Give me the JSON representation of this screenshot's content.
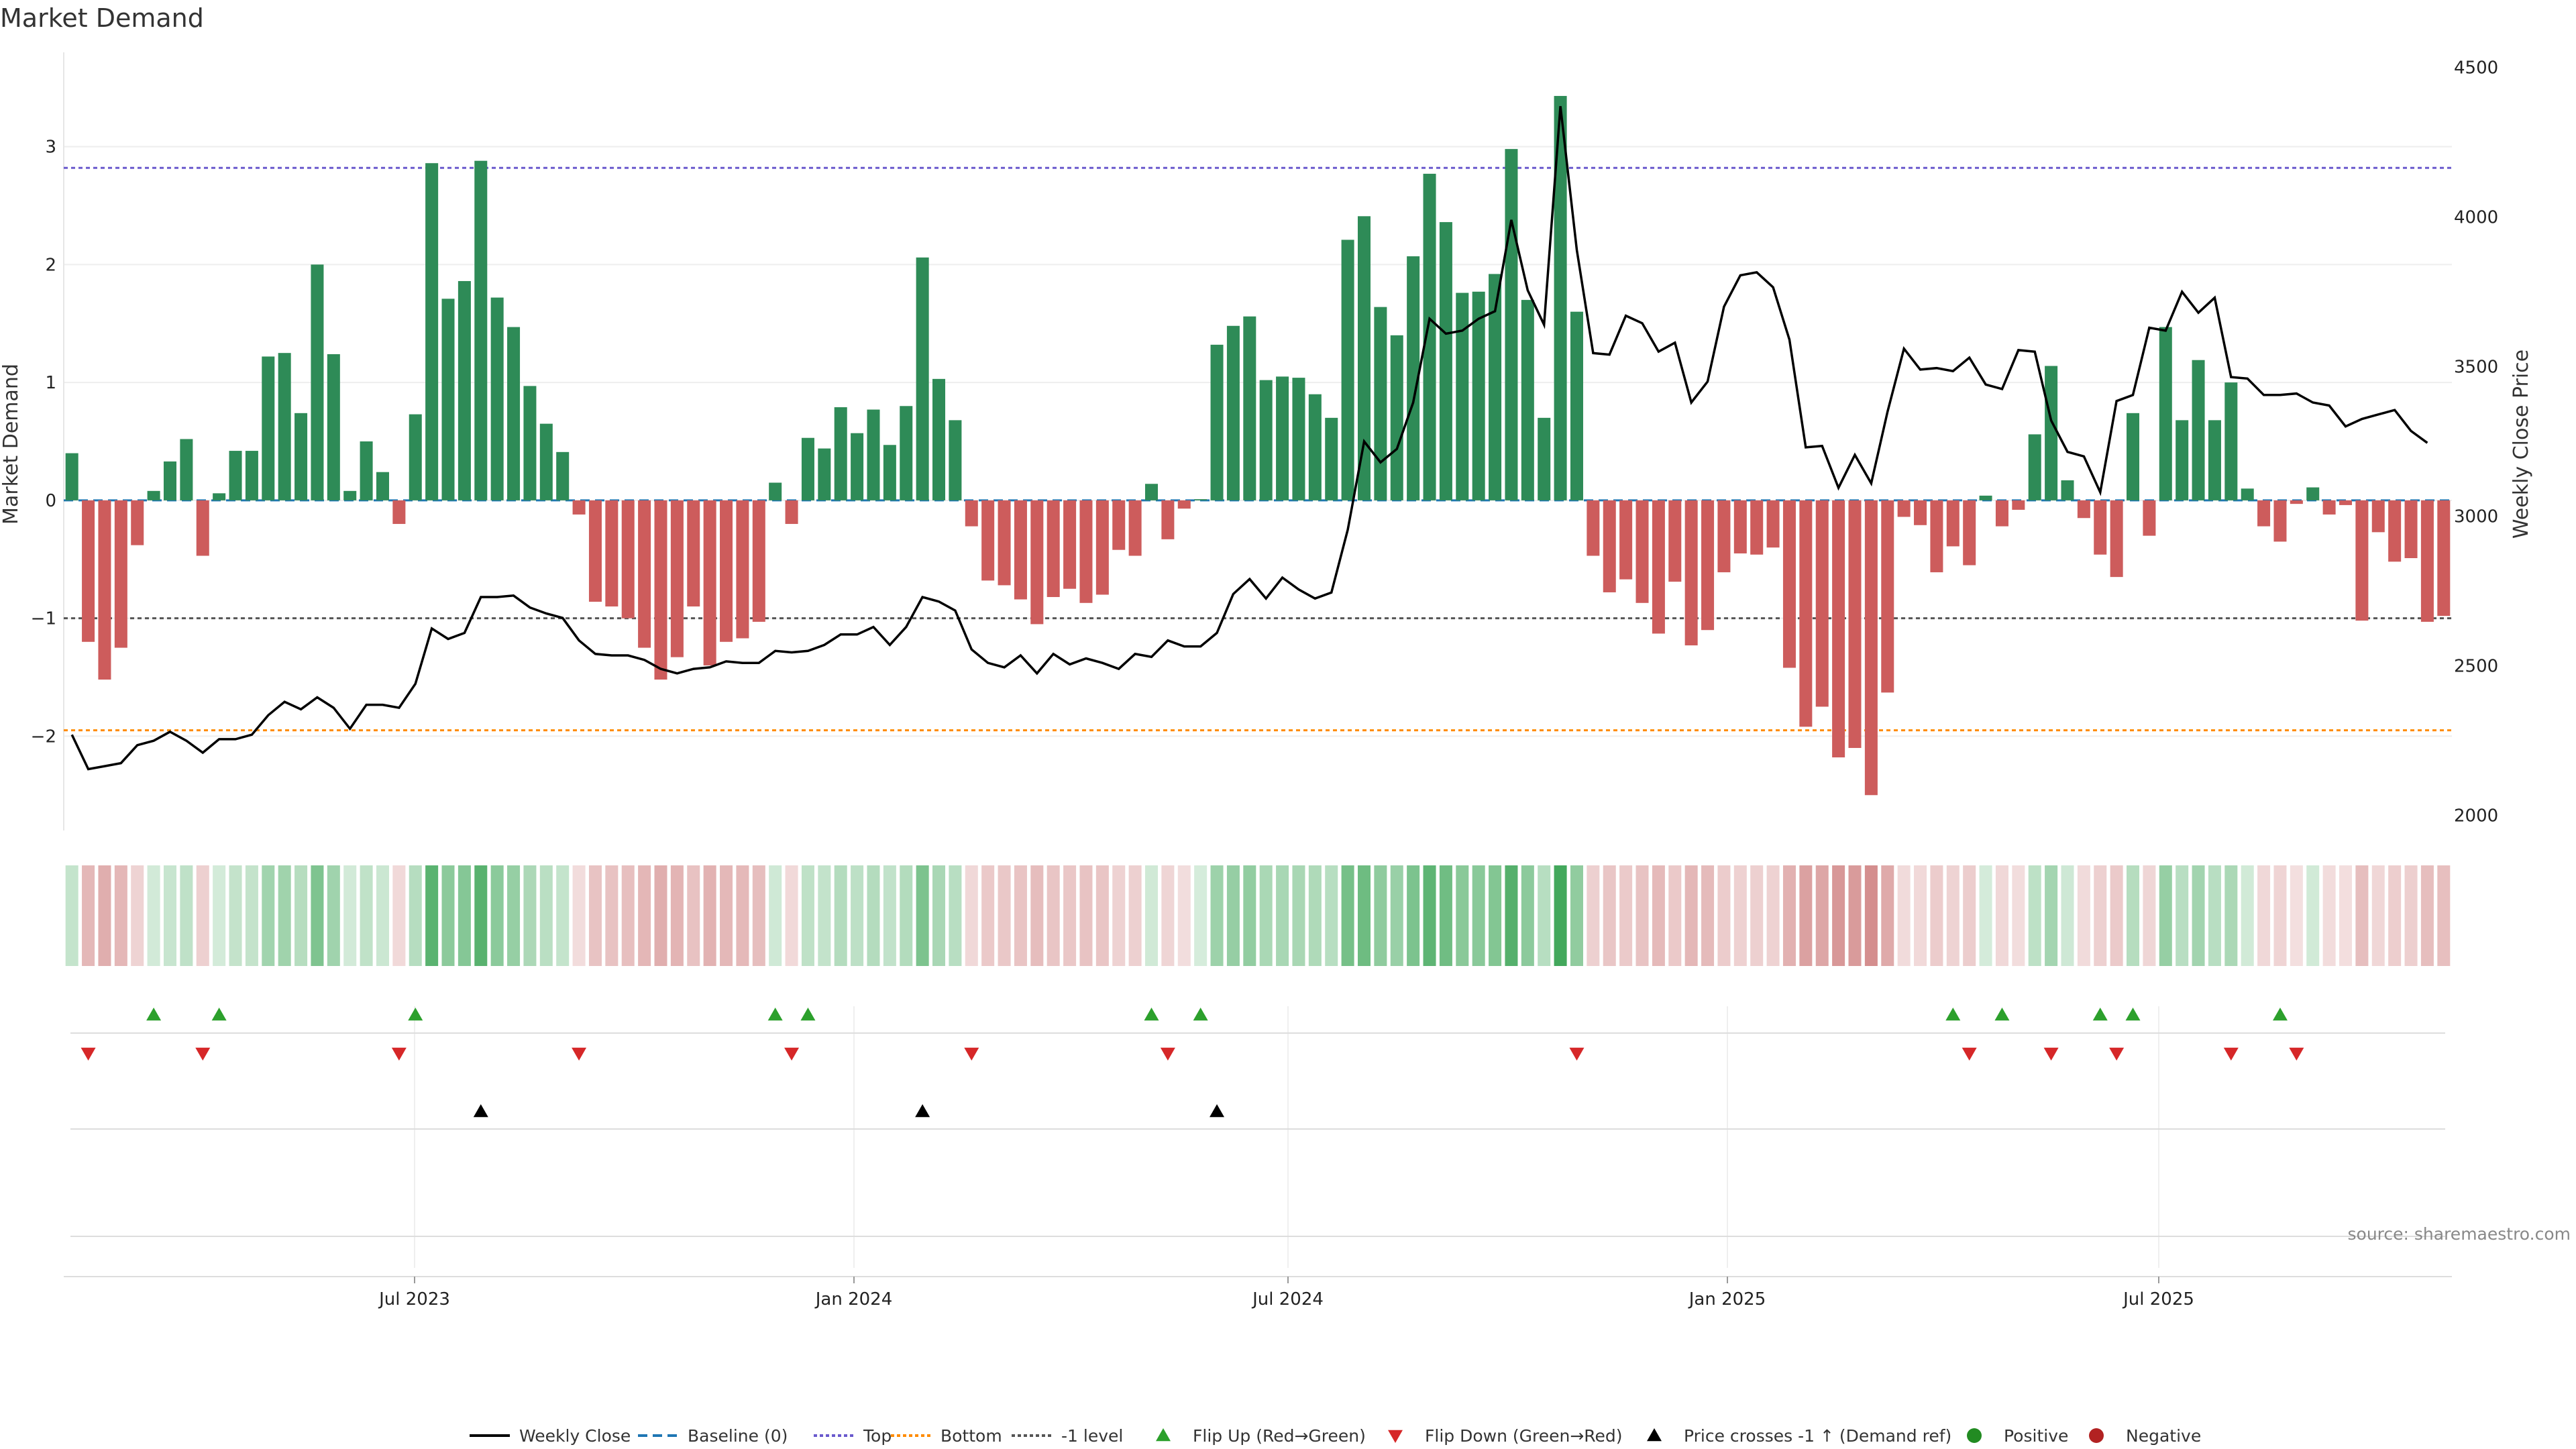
{
  "chart_data": {
    "type": "bar",
    "title": "Market Demand",
    "ylabel_left": "Market Demand",
    "ylabel_right": "Weekly Close Price",
    "ylim_left": [
      -2.8,
      3.8
    ],
    "ylim_right": [
      1950,
      4550
    ],
    "yticks_left": [
      3,
      2,
      1,
      0,
      -1,
      -2
    ],
    "yticks_left_labels": [
      "3",
      "2",
      "1",
      "0",
      "−1",
      "−2"
    ],
    "yticks_right": [
      4500,
      4000,
      3500,
      3000,
      2500,
      2000
    ],
    "xticks": [
      "Jul 2023",
      "Jan 2024",
      "Jul 2024",
      "Jan 2025",
      "Jul 2025"
    ],
    "reference_lines": {
      "top": 2.82,
      "bottom": -1.95,
      "minus_one": -1.0,
      "baseline": 0
    },
    "demand": [
      0.4,
      -1.2,
      -1.52,
      -1.25,
      -0.38,
      0.08,
      0.33,
      0.52,
      -0.47,
      0.06,
      0.42,
      0.42,
      1.22,
      1.25,
      0.74,
      2.0,
      1.24,
      0.08,
      0.5,
      0.24,
      -0.2,
      0.73,
      2.86,
      1.71,
      1.86,
      2.88,
      1.72,
      1.47,
      0.97,
      0.65,
      0.41,
      -0.12,
      -0.86,
      -0.9,
      -1.0,
      -1.25,
      -1.52,
      -1.33,
      -0.9,
      -1.4,
      -1.2,
      -1.17,
      -1.03,
      0.15,
      -0.2,
      0.53,
      0.44,
      0.79,
      0.57,
      0.77,
      0.47,
      0.8,
      2.06,
      1.03,
      0.68,
      -0.22,
      -0.68,
      -0.72,
      -0.84,
      -1.05,
      -0.82,
      -0.75,
      -0.87,
      -0.8,
      -0.42,
      -0.47,
      0.14,
      -0.33,
      -0.07,
      0.01,
      1.32,
      1.48,
      1.56,
      1.02,
      1.05,
      1.04,
      0.9,
      0.7,
      2.21,
      2.41,
      1.64,
      1.4,
      2.07,
      2.77,
      2.36,
      1.76,
      1.77,
      1.92,
      2.98,
      1.7,
      0.7,
      3.43,
      1.6,
      -0.47,
      -0.78,
      -0.67,
      -0.87,
      -1.13,
      -0.69,
      -1.23,
      -1.1,
      -0.61,
      -0.45,
      -0.46,
      -0.4,
      -1.42,
      -1.92,
      -1.75,
      -2.18,
      -2.1,
      -2.5,
      -1.63,
      -0.14,
      -0.21,
      -0.61,
      -0.39,
      -0.55,
      0.04,
      -0.22,
      -0.08,
      0.56,
      1.14,
      0.17,
      -0.15,
      -0.46,
      -0.65,
      0.74,
      -0.3,
      1.47,
      0.68,
      1.19,
      0.68,
      1.0,
      0.1,
      -0.22,
      -0.35,
      -0.03,
      0.11,
      -0.12,
      -0.04,
      -1.02,
      -0.27,
      -0.52,
      -0.49,
      -1.03,
      -0.98
    ],
    "weekly_close": [
      2270,
      2155,
      2165,
      2175,
      2235,
      2250,
      2280,
      2250,
      2210,
      2255,
      2255,
      2270,
      2335,
      2380,
      2355,
      2395,
      2360,
      2290,
      2370,
      2370,
      2360,
      2440,
      2625,
      2590,
      2610,
      2730,
      2730,
      2735,
      2695,
      2675,
      2660,
      2585,
      2540,
      2535,
      2535,
      2520,
      2490,
      2475,
      2490,
      2495,
      2515,
      2510,
      2510,
      2550,
      2545,
      2550,
      2570,
      2605,
      2605,
      2630,
      2570,
      2630,
      2730,
      2715,
      2685,
      2555,
      2510,
      2495,
      2535,
      2475,
      2540,
      2505,
      2525,
      2510,
      2490,
      2540,
      2530,
      2585,
      2565,
      2565,
      2610,
      2740,
      2790,
      2725,
      2795,
      2755,
      2725,
      2745,
      2955,
      3250,
      3180,
      3225,
      3380,
      3660,
      3610,
      3620,
      3660,
      3685,
      3990,
      3755,
      3640,
      4370,
      3890,
      3545,
      3540,
      3670,
      3645,
      3550,
      3580,
      3380,
      3450,
      3700,
      3805,
      3815,
      3765,
      3590,
      3230,
      3235,
      3095,
      3205,
      3110,
      3350,
      3560,
      3490,
      3495,
      3485,
      3530,
      3440,
      3425,
      3555,
      3550,
      3320,
      3215,
      3200,
      3080,
      3385,
      3405,
      3630,
      3620,
      3750,
      3680,
      3730,
      3465,
      3460,
      3405,
      3405,
      3410,
      3380,
      3370,
      3300,
      3325,
      3340,
      3355,
      3285,
      3245
    ],
    "flip_up_weeks": [
      5,
      9,
      21,
      43,
      45,
      66,
      69,
      115,
      118,
      124,
      126,
      135
    ],
    "flip_down_weeks": [
      1,
      8,
      20,
      31,
      44,
      55,
      67,
      92,
      116,
      121,
      125,
      132,
      136
    ],
    "price_cross_weeks": [
      25,
      52,
      70
    ],
    "legend": [
      "Weekly Close",
      "Baseline (0)",
      "Top",
      "Bottom",
      "-1 level",
      "Flip Up (Red→Green)",
      "Flip Down (Green→Red)",
      "Price crosses -1 ↑ (Demand ref)",
      "Positive",
      "Negative"
    ],
    "source": "source: sharemaestro.com",
    "colors": {
      "positive": "#2e8b57",
      "negative": "#cd5c5c",
      "price": "#000000",
      "baseline": "#1f77b4",
      "top": "#6a5acd",
      "bottom": "#ff8c00",
      "minus_one": "#555555",
      "flip_up": "#2ca02c",
      "flip_down": "#d62728",
      "legend_positive": "#228b22",
      "legend_negative": "#b22222"
    }
  }
}
